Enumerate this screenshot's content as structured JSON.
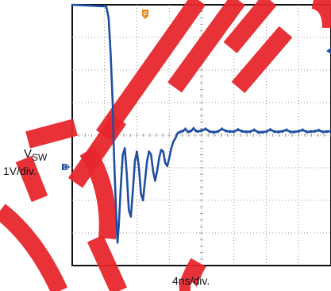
{
  "chart_data": {
    "type": "line",
    "title": "",
    "xlabel": "4ns/div.",
    "ylabel_main": "V",
    "ylabel_sub": "SW",
    "ylabel_scale": "1V/div.",
    "ground_marker": "D",
    "trigger_marker": "p",
    "grid": true,
    "x_divisions": 8,
    "y_divisions": 8,
    "xlim": [
      0,
      32
    ],
    "ylim": [
      -4,
      4
    ],
    "series": [
      {
        "color": "#1f4ea3",
        "x": [
          0.0,
          4.2,
          4.5,
          4.75,
          5.0,
          5.1,
          5.25,
          5.45,
          5.6,
          5.75,
          6.0,
          6.25,
          6.5,
          6.75,
          7.0,
          7.25,
          7.5,
          7.75,
          8.0,
          8.25,
          8.5,
          8.75,
          9.0,
          9.25,
          9.5,
          9.75,
          10.0,
          10.25,
          10.5,
          10.75,
          11.0,
          11.25,
          11.5,
          11.75,
          12.0,
          12.25,
          12.5,
          12.75,
          13.0,
          13.25,
          13.5,
          13.75,
          14.0,
          14.25,
          14.5,
          14.75,
          15.0,
          15.25,
          15.5,
          16.0,
          16.5,
          17.0,
          17.5,
          18.0,
          18.5,
          19.0,
          19.5,
          20.0,
          20.5,
          21.0,
          21.5,
          22.0,
          22.5,
          23.0,
          23.5,
          24.0,
          24.5,
          25.0,
          25.5,
          26.0,
          26.5,
          27.0,
          27.5,
          28.0,
          28.5,
          29.0,
          29.5,
          30.0,
          30.5,
          31.0,
          31.5,
          32.0
        ],
        "values": [
          4.0,
          3.95,
          3.6,
          2.5,
          1.0,
          -0.1,
          -1.2,
          -2.5,
          -3.3,
          -2.8,
          -1.6,
          -0.6,
          -0.4,
          -1.2,
          -2.3,
          -2.5,
          -1.7,
          -0.8,
          -0.5,
          -1.0,
          -1.8,
          -2.0,
          -1.4,
          -0.8,
          -0.5,
          -0.6,
          -1.1,
          -1.4,
          -1.1,
          -0.7,
          -0.45,
          -0.5,
          -0.85,
          -0.95,
          -0.7,
          -0.4,
          -0.2,
          -0.1,
          0.05,
          0.1,
          0.1,
          0.15,
          0.18,
          0.12,
          0.1,
          0.15,
          0.2,
          0.15,
          0.1,
          0.15,
          0.18,
          0.12,
          0.08,
          0.12,
          0.18,
          0.14,
          0.1,
          0.12,
          0.16,
          0.13,
          0.09,
          0.12,
          0.15,
          0.1,
          0.08,
          0.12,
          0.16,
          0.12,
          0.09,
          0.13,
          0.15,
          0.11,
          0.09,
          0.13,
          0.15,
          0.11,
          0.1,
          0.13,
          0.14,
          0.11,
          0.1,
          0.13
        ]
      }
    ]
  },
  "watermark": {
    "text": "PRINTED FOR REVIEW",
    "color": "#e8262d"
  }
}
